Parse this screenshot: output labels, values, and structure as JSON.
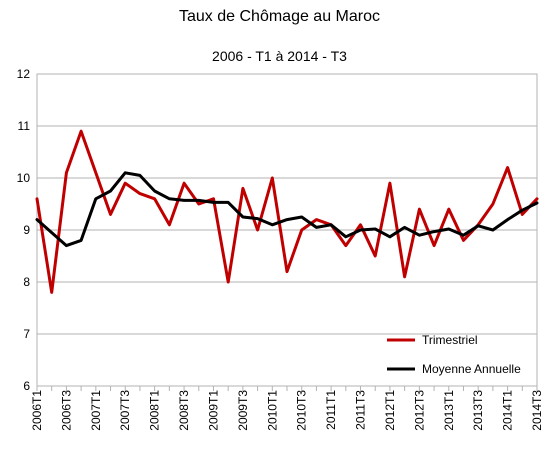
{
  "chart_data": {
    "type": "line",
    "title": "Taux de Chômage au Maroc",
    "subtitle": "2006 - T1 à 2014 - T3",
    "xlabel": "",
    "ylabel": "",
    "ylim": [
      6,
      12
    ],
    "yticks": [
      "6",
      "7",
      "8",
      "9",
      "10",
      "11",
      "12"
    ],
    "grid": "horizontal",
    "legend_position": "bottom-right",
    "x_tick_labels": [
      "2006T1",
      "2006T3",
      "2007T1",
      "2007T3",
      "2008T1",
      "2008T3",
      "2009T1",
      "2009T3",
      "2010T1",
      "2010T3",
      "2011T1",
      "2011T3",
      "2012T1",
      "2012T3",
      "2013T1",
      "2013T3",
      "2014T1",
      "2014T3"
    ],
    "x": [
      "2006T1",
      "2006T2",
      "2006T3",
      "2006T4",
      "2007T1",
      "2007T2",
      "2007T3",
      "2007T4",
      "2008T1",
      "2008T2",
      "2008T3",
      "2008T4",
      "2009T1",
      "2009T2",
      "2009T3",
      "2009T4",
      "2010T1",
      "2010T2",
      "2010T3",
      "2010T4",
      "2011T1",
      "2011T2",
      "2011T3",
      "2011T4",
      "2012T1",
      "2012T2",
      "2012T3",
      "2012T4",
      "2013T1",
      "2013T2",
      "2013T3",
      "2013T4",
      "2014T1",
      "2014T2",
      "2014T3"
    ],
    "series": [
      {
        "name": "Trimestriel",
        "color": "#c00000",
        "values": [
          9.6,
          7.8,
          10.1,
          10.9,
          10.1,
          9.3,
          9.9,
          9.7,
          9.6,
          9.1,
          9.9,
          9.5,
          9.6,
          8.0,
          9.8,
          9.0,
          10.0,
          8.2,
          9.0,
          9.2,
          9.1,
          8.7,
          9.1,
          8.5,
          9.9,
          8.1,
          9.4,
          8.7,
          9.4,
          8.8,
          9.1,
          9.5,
          10.2,
          9.3,
          9.6
        ]
      },
      {
        "name": "Moyenne Annuelle",
        "color": "#000000",
        "values": [
          9.2,
          8.95,
          8.7,
          8.8,
          9.6,
          9.75,
          10.1,
          10.05,
          9.75,
          9.6,
          9.57,
          9.57,
          9.53,
          9.53,
          9.25,
          9.22,
          9.1,
          9.2,
          9.25,
          9.05,
          9.1,
          8.87,
          9.0,
          9.02,
          8.87,
          9.05,
          8.9,
          8.97,
          9.02,
          8.9,
          9.08,
          9.0,
          9.2,
          9.38,
          9.52
        ]
      }
    ]
  }
}
